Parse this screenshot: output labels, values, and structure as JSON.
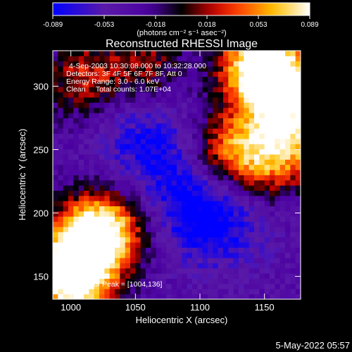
{
  "chart_data": {
    "type": "heatmap",
    "title": "Reconstructed RHESSI Image",
    "xlabel": "Heliocentric X (arcsec)",
    "ylabel": "Heliocentric Y (arcsec)",
    "xlim": [
      986,
      1178
    ],
    "ylim": [
      132,
      328
    ],
    "x_ticks": [
      1000,
      1050,
      1100,
      1150
    ],
    "y_ticks": [
      150,
      200,
      250,
      300
    ],
    "colorbar": {
      "min": -0.089,
      "max": 0.089,
      "ticks": [
        "-0.089",
        "-0.053",
        "-0.018",
        "0.018",
        "0.053",
        "0.089"
      ],
      "label": "(photons cm⁻² s⁻¹ asec⁻²)",
      "colormap": [
        "#0000ff",
        "#5a1aa8",
        "#4b00a0",
        "#000000",
        "#c00000",
        "#ff4000",
        "#ffc000",
        "#ffffff"
      ]
    },
    "annotations": [
      "4-Sep-2003 10:30:08.000 to 10:32:28.000",
      "Detectors: 3F 4F 5F 6F 7F 8F, Att 0",
      "Energy Range: 3.0 - 6.0 keV",
      "Clean     Total counts: 1.07E+04"
    ],
    "peak_label": "Position of Peak = [1004,136]",
    "features": [
      {
        "x": 1000,
        "y": 145,
        "value": 0.089
      },
      {
        "x": 1010,
        "y": 175,
        "value": 0.07
      },
      {
        "x": 1030,
        "y": 190,
        "value": 0.05
      },
      {
        "x": 1160,
        "y": 300,
        "value": 0.085
      },
      {
        "x": 1145,
        "y": 320,
        "value": 0.065
      },
      {
        "x": 1175,
        "y": 260,
        "value": 0.04
      },
      {
        "x": 1120,
        "y": 250,
        "value": 0.035
      },
      {
        "x": 1148,
        "y": 240,
        "value": 0.03
      },
      {
        "x": 1010,
        "y": 305,
        "value": 0.025
      },
      {
        "x": 1058,
        "y": 315,
        "value": 0.015
      },
      {
        "x": 1065,
        "y": 250,
        "value": -0.075
      },
      {
        "x": 1100,
        "y": 205,
        "value": -0.085
      },
      {
        "x": 1120,
        "y": 190,
        "value": -0.06
      },
      {
        "x": 1045,
        "y": 275,
        "value": -0.05
      }
    ],
    "baseline": -0.035
  },
  "footer_date": "5-May-2022 05:57"
}
